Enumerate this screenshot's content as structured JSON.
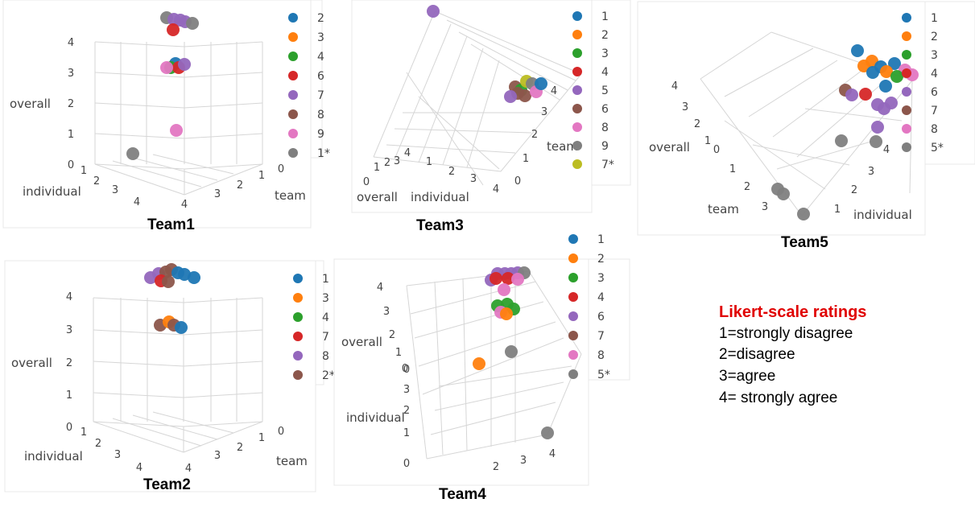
{
  "chart_data": [
    {
      "type": "scatter",
      "caption": "Team1",
      "xlabel": "individual",
      "ylabel": "team",
      "zlabel": "overall",
      "ticks": {
        "individual": [
          "1",
          "2",
          "3",
          "4"
        ],
        "team": [
          "0",
          "1",
          "2",
          "3",
          "4"
        ],
        "overall": [
          "0",
          "1",
          "2",
          "3",
          "4"
        ]
      },
      "legend": [
        "2",
        "3",
        "4",
        "6",
        "7",
        "8",
        "9",
        "1*"
      ],
      "colors": [
        "#1f77b4",
        "#ff7f0e",
        "#2ca02c",
        "#d62728",
        "#9467bd",
        "#8c564b",
        "#e377c2",
        "#7f7f7f"
      ]
    },
    {
      "type": "scatter",
      "caption": "Team2",
      "xlabel": "individual",
      "ylabel": "team",
      "zlabel": "overall",
      "ticks": {
        "individual": [
          "1",
          "2",
          "3",
          "4"
        ],
        "team": [
          "0",
          "1",
          "2",
          "3",
          "4"
        ],
        "overall": [
          "0",
          "1",
          "2",
          "3",
          "4"
        ]
      },
      "legend": [
        "1",
        "3",
        "4",
        "7",
        "8",
        "2*"
      ],
      "colors": [
        "#1f77b4",
        "#ff7f0e",
        "#2ca02c",
        "#d62728",
        "#9467bd",
        "#8c564b"
      ]
    },
    {
      "type": "scatter",
      "caption": "Team3",
      "xlabel": "individual",
      "ylabel": "team",
      "zlabel": "overall",
      "ticks": {
        "individual": [
          "1",
          "2",
          "3",
          "4"
        ],
        "team": [
          "0",
          "1",
          "2",
          "3",
          "4"
        ],
        "overall": [
          "0",
          "1",
          "2",
          "3",
          "4"
        ]
      },
      "legend": [
        "1",
        "2",
        "3",
        "4",
        "5",
        "6",
        "8",
        "9",
        "7*"
      ],
      "colors": [
        "#1f77b4",
        "#ff7f0e",
        "#2ca02c",
        "#d62728",
        "#9467bd",
        "#8c564b",
        "#e377c2",
        "#7f7f7f",
        "#bcbd22"
      ]
    },
    {
      "type": "scatter",
      "caption": "Team4",
      "xlabel": "individual",
      "ylabel": "team",
      "zlabel": "overall",
      "ticks": {
        "individual": [
          "0",
          "1",
          "2",
          "3",
          "4"
        ],
        "team": [
          "2",
          "3",
          "4"
        ],
        "overall": [
          "0",
          "1",
          "2",
          "3",
          "4"
        ]
      },
      "legend": [
        "1",
        "2",
        "3",
        "4",
        "6",
        "7",
        "8",
        "5*"
      ],
      "colors": [
        "#1f77b4",
        "#ff7f0e",
        "#2ca02c",
        "#d62728",
        "#9467bd",
        "#8c564b",
        "#e377c2",
        "#7f7f7f"
      ]
    },
    {
      "type": "scatter",
      "caption": "Team5",
      "xlabel": "individual",
      "ylabel": "team",
      "zlabel": "overall",
      "ticks": {
        "individual": [
          "1",
          "2",
          "3",
          "4"
        ],
        "team": [
          "0",
          "1",
          "2",
          "3"
        ],
        "overall": [
          "0",
          "1",
          "2",
          "3",
          "4"
        ]
      },
      "legend": [
        "1",
        "2",
        "3",
        "4",
        "6",
        "7",
        "8",
        "5*"
      ],
      "colors": [
        "#1f77b4",
        "#ff7f0e",
        "#2ca02c",
        "#d62728",
        "#9467bd",
        "#8c564b",
        "#e377c2",
        "#7f7f7f"
      ]
    }
  ],
  "likert": {
    "title": "Likert-scale ratings",
    "items": [
      "1=strongly disagree",
      "2=disagree",
      "3=agree",
      "4= strongly agree"
    ]
  }
}
